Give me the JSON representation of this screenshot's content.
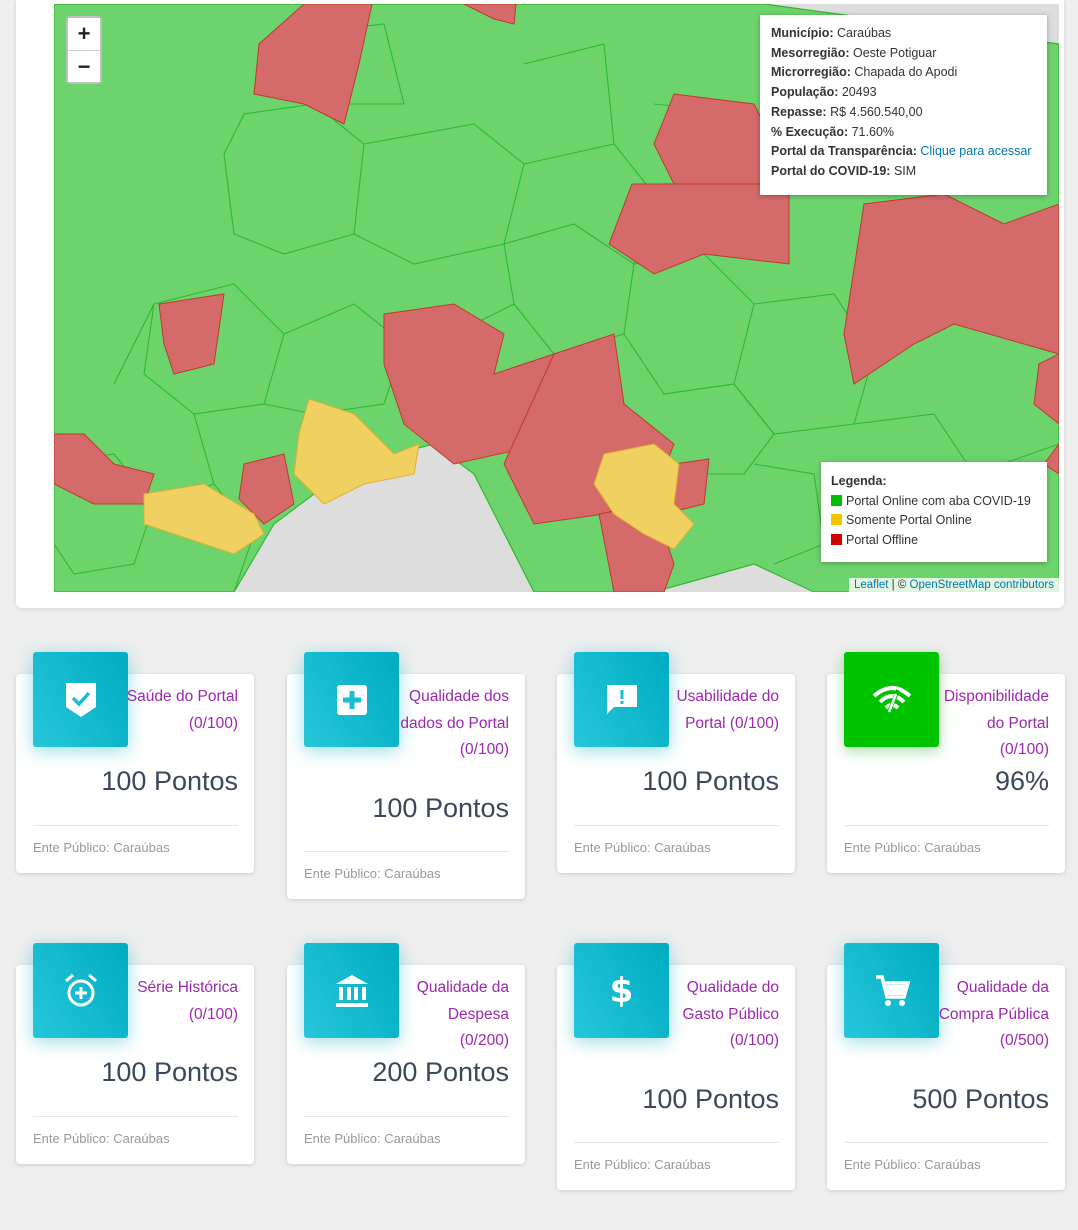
{
  "map": {
    "zoom_in": "+",
    "zoom_out": "−",
    "info": {
      "municipio_label": "Município:",
      "municipio": "Caraúbas",
      "mesorregiao_label": "Mesorregião:",
      "mesorregiao": "Oeste Potiguar",
      "microrregiao_label": "Microrregião:",
      "microrregiao": "Chapada do Apodi",
      "populacao_label": "População:",
      "populacao": "20493",
      "repasse_label": "Repasse:",
      "repasse": "R$ 4.560.540,00",
      "execucao_label": "% Execução:",
      "execucao": "71.60%",
      "portal_label": "Portal da Transparência:",
      "portal_link": "Clique para acessar",
      "covid_label": "Portal do COVID-19:",
      "covid": "SIM"
    },
    "legend": {
      "title": "Legenda:",
      "items": [
        {
          "label": "Portal Online com aba COVID-19",
          "color": "#00c000"
        },
        {
          "label": "Somente Portal Online",
          "color": "#f5c400"
        },
        {
          "label": "Portal Offline",
          "color": "#d40000"
        }
      ]
    },
    "attribution": {
      "leaflet": "Leaflet",
      "sep": " | © ",
      "osm": "OpenStreetMap contributors"
    },
    "colors": {
      "green": "#6dd36d",
      "yellow": "#f0d060",
      "red": "#d56a6a",
      "grey": "#dddddd"
    }
  },
  "cards": [
    {
      "category": "Saúde do Portal (0/100)",
      "value": "100 Pontos",
      "footer": "Ente Público: Caraúbas",
      "icon": "verified-shield-icon"
    },
    {
      "category": "Qualidade dos dados do Portal (0/100)",
      "value": "100 Pontos",
      "footer": "Ente Público: Caraúbas",
      "icon": "medical-plus-icon"
    },
    {
      "category": "Usabilidade do Portal (0/100)",
      "value": "100 Pontos",
      "footer": "Ente Público: Caraúbas",
      "icon": "feedback-icon"
    },
    {
      "category": "Disponibilidade do Portal (0/100)",
      "value": "96%",
      "footer": "Ente Público: Caraúbas",
      "icon": "wifi-signal-icon"
    },
    {
      "category": "Série Histórica (0/100)",
      "value": "100 Pontos",
      "footer": "Ente Público: Caraúbas",
      "icon": "alarm-add-icon"
    },
    {
      "category": "Qualidade da Despesa (0/200)",
      "value": "200 Pontos",
      "footer": "Ente Público: Caraúbas",
      "icon": "bank-icon"
    },
    {
      "category": "Qualidade do Gasto Público (0/100)",
      "value": "100 Pontos",
      "footer": "Ente Público: Caraúbas",
      "icon": "dollar-icon"
    },
    {
      "category": "Qualidade da Compra Pública (0/500)",
      "value": "500 Pontos",
      "footer": "Ente Público: Caraúbas",
      "icon": "shopping-cart-icon"
    }
  ]
}
